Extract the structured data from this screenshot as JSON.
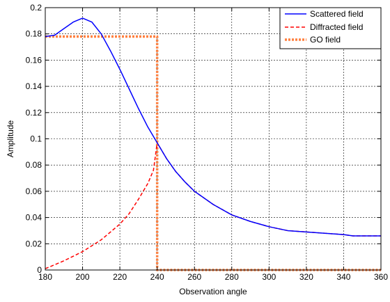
{
  "chart_data": {
    "type": "line",
    "title": "",
    "xlabel": "Observation angle",
    "ylabel": "Amplitude",
    "xlim": [
      180,
      360
    ],
    "ylim": [
      0,
      0.2
    ],
    "xticks": [
      180,
      200,
      220,
      240,
      260,
      280,
      300,
      320,
      340,
      360
    ],
    "xtick_labels": [
      "180",
      "200",
      "220",
      "240",
      "260",
      "280",
      "300",
      "320",
      "340",
      "360"
    ],
    "yticks": [
      0,
      0.02,
      0.04,
      0.06,
      0.08,
      0.1,
      0.12,
      0.14,
      0.16,
      0.18,
      0.2
    ],
    "ytick_labels": [
      "0",
      "0.02",
      "0.04",
      "0.06",
      "0.08",
      "0.1",
      "0.12",
      "0.14",
      "0.16",
      "0.18",
      "0.2"
    ],
    "grid": true,
    "grid_style": "dotted",
    "legend_position": "top-right",
    "series": [
      {
        "name": "Scattered field",
        "color": "#0000ff",
        "style": "solid",
        "x": [
          180,
          185,
          190,
          195,
          200,
          205,
          210,
          215,
          220,
          225,
          230,
          235,
          240,
          245,
          250,
          255,
          260,
          270,
          280,
          290,
          300,
          310,
          320,
          330,
          340,
          345,
          350,
          360
        ],
        "y": [
          0.178,
          0.179,
          0.184,
          0.189,
          0.192,
          0.189,
          0.18,
          0.167,
          0.153,
          0.138,
          0.123,
          0.109,
          0.097,
          0.085,
          0.075,
          0.067,
          0.06,
          0.05,
          0.042,
          0.037,
          0.033,
          0.03,
          0.029,
          0.028,
          0.027,
          0.026,
          0.026,
          0.026
        ]
      },
      {
        "name": "Diffracted field",
        "color": "#ff0000",
        "style": "dashed",
        "x": [
          180,
          190,
          200,
          210,
          220,
          225,
          230,
          235,
          238,
          240,
          245,
          250,
          255,
          260,
          270,
          280,
          290,
          300,
          310,
          320,
          330,
          340,
          345,
          350,
          360
        ],
        "y": [
          0.001,
          0.007,
          0.014,
          0.023,
          0.035,
          0.043,
          0.054,
          0.066,
          0.076,
          0.097,
          0.085,
          0.075,
          0.067,
          0.06,
          0.05,
          0.042,
          0.037,
          0.033,
          0.03,
          0.029,
          0.028,
          0.027,
          0.026,
          0.026,
          0.026
        ]
      },
      {
        "name": "GO field",
        "color": "#ff8040",
        "style": "dotted-thick",
        "x": [
          180,
          240,
          240,
          360
        ],
        "y": [
          0.178,
          0.178,
          0,
          0
        ]
      }
    ]
  }
}
